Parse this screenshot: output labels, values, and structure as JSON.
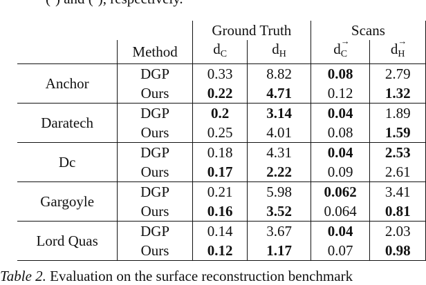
{
  "top_text": "(·) and (·), respectively.",
  "header": {
    "group_ground_truth": "Ground Truth",
    "group_scans": "Scans",
    "method": "Method",
    "metric_d": "d",
    "sub_c": "C",
    "sub_h": "H",
    "arrow": "→"
  },
  "rows": [
    {
      "name": "Anchor",
      "entries": [
        {
          "method": "DGP",
          "gt_dc": "0.33",
          "gt_dh": "8.82",
          "sc_dc": "0.08",
          "sc_dh": "2.79",
          "bold": [
            false,
            false,
            true,
            false
          ]
        },
        {
          "method": "Ours",
          "gt_dc": "0.22",
          "gt_dh": "4.71",
          "sc_dc": "0.12",
          "sc_dh": "1.32",
          "bold": [
            true,
            true,
            false,
            true
          ]
        }
      ]
    },
    {
      "name": "Daratech",
      "entries": [
        {
          "method": "DGP",
          "gt_dc": "0.2",
          "gt_dh": "3.14",
          "sc_dc": "0.04",
          "sc_dh": "1.89",
          "bold": [
            true,
            true,
            true,
            false
          ]
        },
        {
          "method": "Ours",
          "gt_dc": "0.25",
          "gt_dh": "4.01",
          "sc_dc": "0.08",
          "sc_dh": "1.59",
          "bold": [
            false,
            false,
            false,
            true
          ]
        }
      ]
    },
    {
      "name": "Dc",
      "entries": [
        {
          "method": "DGP",
          "gt_dc": "0.18",
          "gt_dh": "4.31",
          "sc_dc": "0.04",
          "sc_dh": "2.53",
          "bold": [
            false,
            false,
            true,
            true
          ]
        },
        {
          "method": "Ours",
          "gt_dc": "0.17",
          "gt_dh": "2.22",
          "sc_dc": "0.09",
          "sc_dh": "2.61",
          "bold": [
            true,
            true,
            false,
            false
          ]
        }
      ]
    },
    {
      "name": "Gargoyle",
      "entries": [
        {
          "method": "DGP",
          "gt_dc": "0.21",
          "gt_dh": "5.98",
          "sc_dc": "0.062",
          "sc_dh": "3.41",
          "bold": [
            false,
            false,
            true,
            false
          ]
        },
        {
          "method": "Ours",
          "gt_dc": "0.16",
          "gt_dh": "3.52",
          "sc_dc": "0.064",
          "sc_dh": "0.81",
          "bold": [
            true,
            true,
            false,
            true
          ]
        }
      ]
    },
    {
      "name": "Lord Quas",
      "entries": [
        {
          "method": "DGP",
          "gt_dc": "0.14",
          "gt_dh": "3.67",
          "sc_dc": "0.04",
          "sc_dh": "2.03",
          "bold": [
            false,
            false,
            true,
            false
          ]
        },
        {
          "method": "Ours",
          "gt_dc": "0.12",
          "gt_dh": "1.17",
          "sc_dc": "0.07",
          "sc_dh": "0.98",
          "bold": [
            true,
            true,
            false,
            true
          ]
        }
      ]
    }
  ],
  "caption": {
    "label": "Table 2.",
    "text": " Evaluation on the surface reconstruction benchmark"
  }
}
